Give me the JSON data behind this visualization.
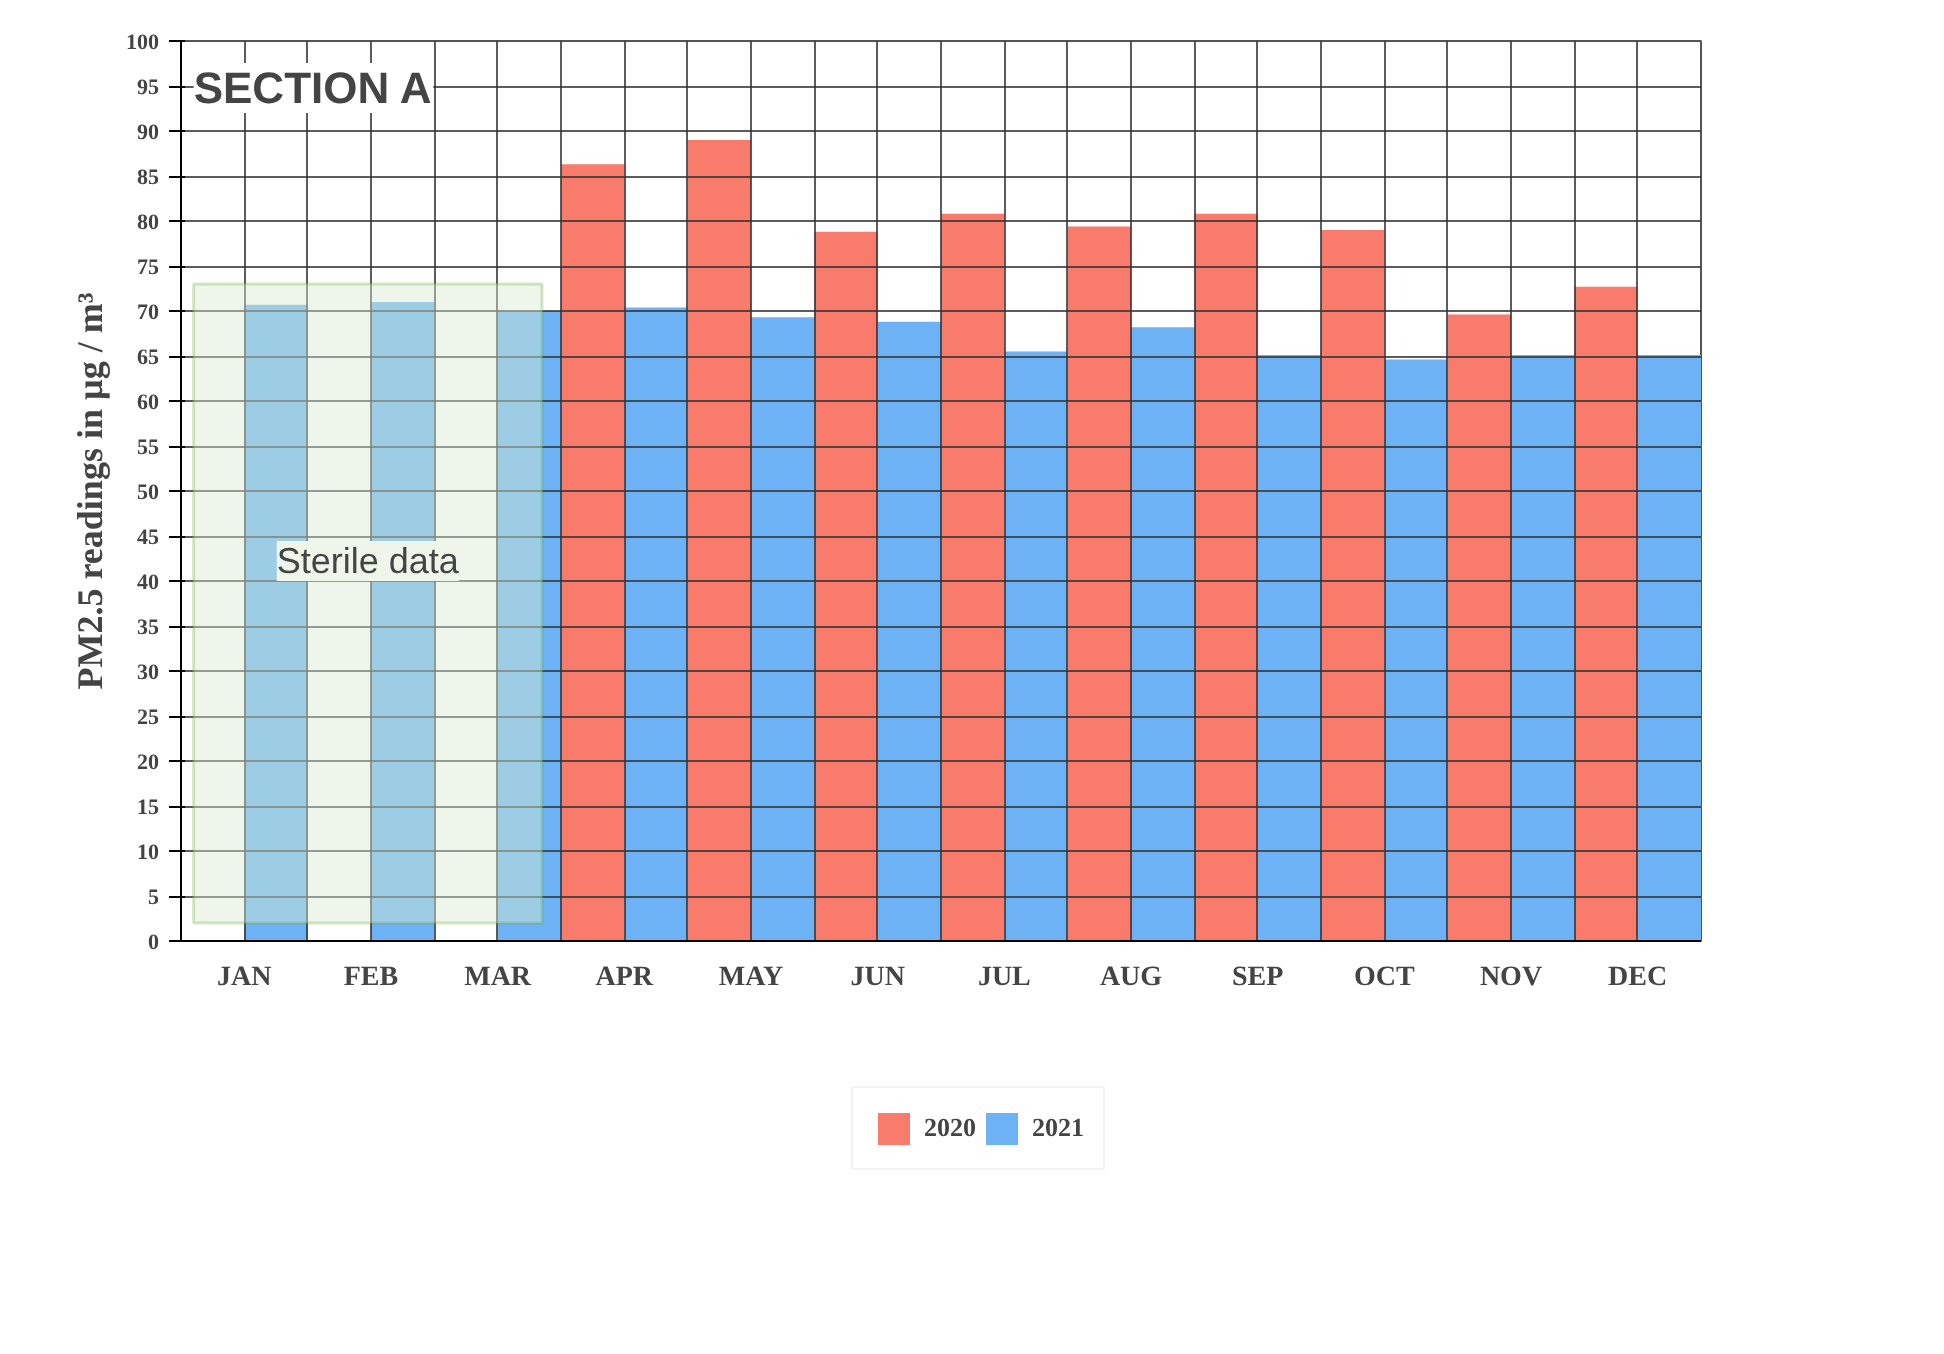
{
  "chart_data": {
    "type": "bar",
    "ylabel": "PM2.5 readings in µg / m³",
    "categories": [
      "JAN",
      "FEB",
      "MAR",
      "APR",
      "MAY",
      "JUN",
      "JUL",
      "AUG",
      "SEP",
      "OCT",
      "NOV",
      "DEC"
    ],
    "series": [
      {
        "name": "2020",
        "color": "#f87b6c",
        "values": [
          null,
          null,
          null,
          86.3,
          89,
          78.8,
          80.8,
          79.4,
          80.8,
          79,
          69.6,
          72.7
        ]
      },
      {
        "name": "2021",
        "color": "#6cb2f5",
        "values": [
          70.7,
          71,
          70,
          70.4,
          69.3,
          68.8,
          65.5,
          68.2,
          65.1,
          64.6,
          65.1,
          65.1
        ]
      }
    ],
    "ylim": [
      0,
      100
    ],
    "yticks": [
      0,
      5,
      10,
      15,
      20,
      25,
      30,
      35,
      40,
      45,
      50,
      55,
      60,
      65,
      70,
      75,
      80,
      85,
      90,
      95,
      100
    ],
    "grid": true,
    "legend": "bottom",
    "bands": [
      {
        "axis": "x",
        "from": "JAN",
        "to": "MAR",
        "label": "Sterile data",
        "color": "#d9ead3"
      }
    ],
    "annotations": [
      "SECTION A"
    ]
  }
}
